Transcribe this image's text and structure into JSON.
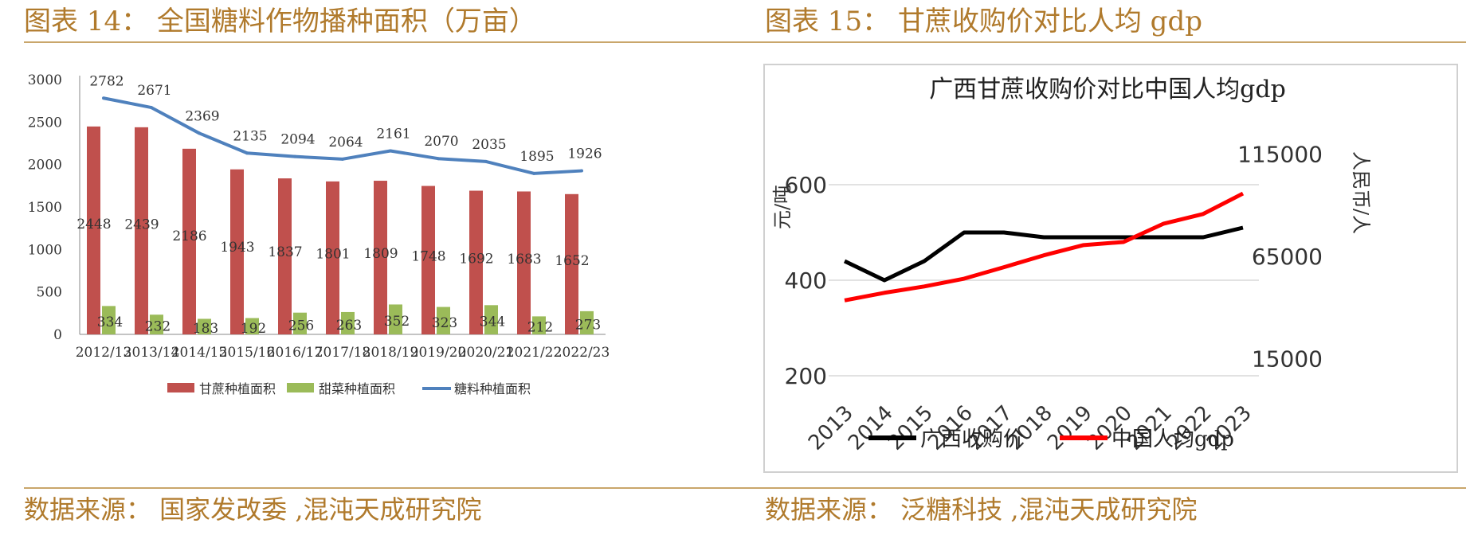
{
  "charts": [
    {
      "header": "图表 14： 全国糖料作物播种面积（万亩）",
      "source": "数据来源： 国家发改委 ,混沌天成研究院"
    },
    {
      "header": "图表 15： 甘蔗收购价对比人均 gdp",
      "source": "数据来源： 泛糖科技 ,混沌天成研究院"
    }
  ],
  "chart_data": [
    {
      "type": "bar",
      "categories": [
        "2012/13",
        "2013/14",
        "2014/15",
        "2015/16",
        "2016/17",
        "2017/18",
        "2018/19",
        "2019/20",
        "2020/21",
        "2021/22",
        "2022/23"
      ],
      "series": [
        {
          "name": "甘蔗种植面积",
          "type": "bar",
          "color": "#c0504d",
          "values": [
            2448,
            2439,
            2186,
            1943,
            1837,
            1801,
            1809,
            1748,
            1692,
            1683,
            1652
          ]
        },
        {
          "name": "甜菜种植面积",
          "type": "bar",
          "color": "#9bbb59",
          "values": [
            334,
            232,
            183,
            192,
            256,
            263,
            352,
            323,
            344,
            212,
            273
          ]
        },
        {
          "name": "糖料种植面积",
          "type": "line",
          "color": "#4f81bd",
          "values": [
            2782,
            2671,
            2369,
            2135,
            2094,
            2064,
            2161,
            2070,
            2035,
            1895,
            1926
          ]
        }
      ],
      "yticks": [
        0,
        500,
        1000,
        1500,
        2000,
        2500,
        3000
      ],
      "ylim": [
        0,
        3000
      ],
      "grid": false,
      "legend": "bottom"
    },
    {
      "type": "line",
      "title": "广西甘蔗收购价对比中国人均gdp",
      "x": [
        "2013",
        "2014",
        "2015",
        "2016",
        "2017",
        "2018",
        "2019",
        "2020",
        "2021",
        "2022",
        "2023"
      ],
      "series": [
        {
          "name": "广西收购价",
          "axis": "left",
          "color": "#000000",
          "values": [
            440,
            400,
            440,
            500,
            500,
            490,
            490,
            490,
            490,
            490,
            510
          ]
        },
        {
          "name": "中国人均gdp",
          "axis": "right",
          "color": "#ff0000",
          "values": [
            43500,
            47200,
            50300,
            54100,
            59700,
            65500,
            70500,
            72000,
            80900,
            85700,
            95700
          ]
        }
      ],
      "ylabel": "元/吨",
      "ylabel_right": "人民币/人",
      "yticks_left": [
        200,
        400,
        600
      ],
      "yticks_right": [
        15000,
        65000,
        115000
      ],
      "ylim_left": [
        150,
        750
      ],
      "ylim_right": [
        -5000,
        135000
      ],
      "grid": "horizontal",
      "legend": "bottom"
    }
  ]
}
